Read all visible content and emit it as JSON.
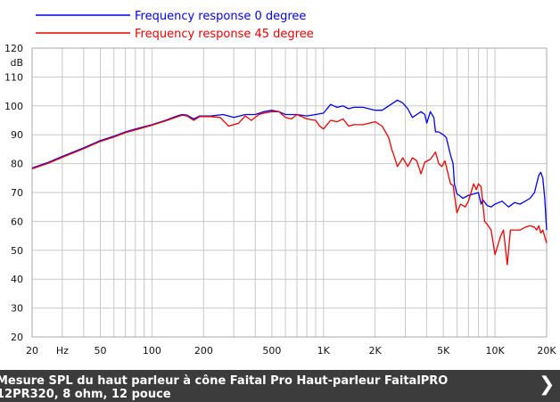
{
  "chart_data": {
    "type": "line",
    "xscale": "log",
    "xlim": [
      20,
      20000
    ],
    "ylim": [
      20,
      120
    ],
    "grid": true,
    "legend_position": "top-left",
    "ylabel": "dB",
    "x_ticks": [
      {
        "value": 20,
        "label": "20"
      },
      {
        "value": 30,
        "label": "Hz"
      },
      {
        "value": 50,
        "label": "50"
      },
      {
        "value": 100,
        "label": "100"
      },
      {
        "value": 200,
        "label": "200"
      },
      {
        "value": 500,
        "label": "500"
      },
      {
        "value": 1000,
        "label": "1K"
      },
      {
        "value": 2000,
        "label": "2K"
      },
      {
        "value": 5000,
        "label": "5K"
      },
      {
        "value": 10000,
        "label": "10K"
      },
      {
        "value": 20000,
        "label": "20K"
      }
    ],
    "y_ticks": [
      20,
      30,
      40,
      50,
      60,
      70,
      80,
      90,
      100,
      110,
      120
    ],
    "series": [
      {
        "name": "Frequency response 0 degree",
        "color": "#0000ee",
        "points": [
          [
            20,
            78.5
          ],
          [
            25,
            80.5
          ],
          [
            30,
            82.5
          ],
          [
            40,
            85.5
          ],
          [
            50,
            88
          ],
          [
            60,
            89.5
          ],
          [
            70,
            91
          ],
          [
            80,
            92
          ],
          [
            100,
            93.5
          ],
          [
            120,
            95
          ],
          [
            140,
            96.5
          ],
          [
            150,
            97
          ],
          [
            160,
            96.8
          ],
          [
            175,
            95.5
          ],
          [
            190,
            96.5
          ],
          [
            220,
            96.5
          ],
          [
            260,
            97
          ],
          [
            300,
            96
          ],
          [
            350,
            97
          ],
          [
            400,
            97
          ],
          [
            450,
            98
          ],
          [
            500,
            98.5
          ],
          [
            550,
            98
          ],
          [
            600,
            97
          ],
          [
            700,
            97
          ],
          [
            800,
            96.5
          ],
          [
            900,
            97
          ],
          [
            1000,
            97.5
          ],
          [
            1100,
            100.5
          ],
          [
            1200,
            99.5
          ],
          [
            1300,
            100
          ],
          [
            1400,
            99
          ],
          [
            1500,
            99.5
          ],
          [
            1700,
            99.5
          ],
          [
            2000,
            98.5
          ],
          [
            2200,
            98.5
          ],
          [
            2400,
            100
          ],
          [
            2700,
            102
          ],
          [
            2900,
            101
          ],
          [
            3100,
            99
          ],
          [
            3300,
            96
          ],
          [
            3500,
            97
          ],
          [
            3700,
            98
          ],
          [
            3900,
            97
          ],
          [
            4000,
            94
          ],
          [
            4200,
            98
          ],
          [
            4400,
            96
          ],
          [
            4500,
            91
          ],
          [
            4700,
            91
          ],
          [
            5000,
            90
          ],
          [
            5200,
            89
          ],
          [
            5500,
            83
          ],
          [
            5700,
            80
          ],
          [
            5800,
            73
          ],
          [
            6000,
            69.5
          ],
          [
            6200,
            69
          ],
          [
            6500,
            68
          ],
          [
            7000,
            69
          ],
          [
            7500,
            69.5
          ],
          [
            8000,
            70
          ],
          [
            8300,
            66
          ],
          [
            8500,
            67.5
          ],
          [
            9000,
            65.5
          ],
          [
            9500,
            65
          ],
          [
            10000,
            66
          ],
          [
            11000,
            67
          ],
          [
            12000,
            65
          ],
          [
            13000,
            66.5
          ],
          [
            14000,
            66
          ],
          [
            15000,
            67
          ],
          [
            16000,
            68
          ],
          [
            17000,
            70
          ],
          [
            17500,
            73
          ],
          [
            18000,
            76
          ],
          [
            18500,
            77
          ],
          [
            19000,
            75
          ],
          [
            19500,
            68
          ],
          [
            20000,
            57
          ]
        ]
      },
      {
        "name": "Frequency response 45 degree",
        "color": "#ee0000",
        "points": [
          [
            20,
            78.2
          ],
          [
            25,
            80.2
          ],
          [
            30,
            82.2
          ],
          [
            40,
            85.2
          ],
          [
            50,
            87.7
          ],
          [
            60,
            89.2
          ],
          [
            70,
            90.7
          ],
          [
            80,
            91.7
          ],
          [
            100,
            93.3
          ],
          [
            120,
            94.8
          ],
          [
            140,
            96.2
          ],
          [
            150,
            96.8
          ],
          [
            160,
            96.5
          ],
          [
            175,
            95
          ],
          [
            190,
            96.3
          ],
          [
            220,
            96.3
          ],
          [
            250,
            96
          ],
          [
            280,
            93
          ],
          [
            320,
            94
          ],
          [
            350,
            96.5
          ],
          [
            380,
            95
          ],
          [
            420,
            97
          ],
          [
            450,
            97.5
          ],
          [
            500,
            98
          ],
          [
            550,
            98
          ],
          [
            600,
            96
          ],
          [
            650,
            95.5
          ],
          [
            700,
            97
          ],
          [
            800,
            95.5
          ],
          [
            900,
            95
          ],
          [
            950,
            93
          ],
          [
            1000,
            92
          ],
          [
            1100,
            95
          ],
          [
            1200,
            94.5
          ],
          [
            1300,
            95.5
          ],
          [
            1400,
            93
          ],
          [
            1500,
            93.5
          ],
          [
            1700,
            93.5
          ],
          [
            2000,
            94.5
          ],
          [
            2200,
            93
          ],
          [
            2400,
            89
          ],
          [
            2500,
            85
          ],
          [
            2600,
            82
          ],
          [
            2700,
            79
          ],
          [
            2900,
            82
          ],
          [
            3100,
            79
          ],
          [
            3300,
            82
          ],
          [
            3500,
            81
          ],
          [
            3700,
            76.5
          ],
          [
            3900,
            80.5
          ],
          [
            4200,
            81.5
          ],
          [
            4500,
            84
          ],
          [
            4700,
            80
          ],
          [
            4900,
            79
          ],
          [
            5100,
            81
          ],
          [
            5300,
            77
          ],
          [
            5500,
            73
          ],
          [
            5700,
            72.5
          ],
          [
            6000,
            63
          ],
          [
            6300,
            66
          ],
          [
            6700,
            65
          ],
          [
            7000,
            67
          ],
          [
            7500,
            73
          ],
          [
            7800,
            71
          ],
          [
            8000,
            73
          ],
          [
            8300,
            72
          ],
          [
            8700,
            60
          ],
          [
            9000,
            59
          ],
          [
            9500,
            57
          ],
          [
            10000,
            48.5
          ],
          [
            10800,
            55
          ],
          [
            11200,
            57
          ],
          [
            11800,
            45
          ],
          [
            12300,
            57
          ],
          [
            13000,
            57
          ],
          [
            14000,
            57
          ],
          [
            15000,
            58
          ],
          [
            16000,
            58.5
          ],
          [
            17000,
            58
          ],
          [
            17500,
            57
          ],
          [
            18000,
            58.5
          ],
          [
            18500,
            56
          ],
          [
            19000,
            57
          ],
          [
            20000,
            52.5
          ]
        ]
      }
    ]
  },
  "caption": {
    "text": "Mesure SPL du haut parleur à cône Faital Pro Haut-parleur FaitalPRO\n12PR320, 8 ohm, 12 pouce"
  },
  "close_icon": "close-chevron-icon"
}
